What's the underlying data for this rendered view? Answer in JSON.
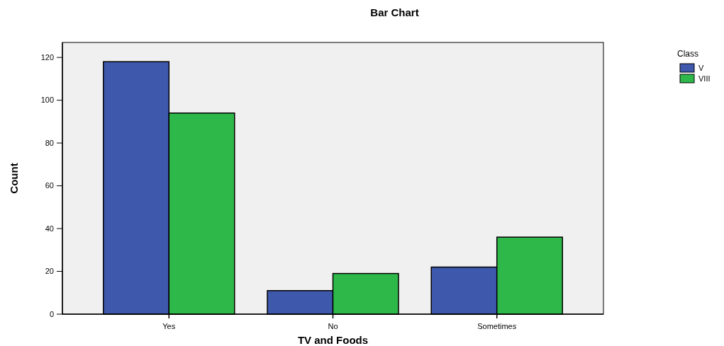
{
  "chart_data": {
    "type": "bar",
    "title": "Bar Chart",
    "xlabel": "TV and Foods",
    "ylabel": "Count",
    "legend_title": "Class",
    "categories": [
      "Yes",
      "No",
      "Sometimes"
    ],
    "series": [
      {
        "name": "V",
        "color": "#3e58ab",
        "values": [
          118,
          11,
          22
        ]
      },
      {
        "name": "VIII",
        "color": "#2eb84a",
        "values": [
          94,
          19,
          36
        ]
      }
    ],
    "ylim": [
      0,
      127
    ],
    "yticks": [
      0,
      20,
      40,
      60,
      80,
      100,
      120
    ],
    "grid": false,
    "legend": "right"
  }
}
